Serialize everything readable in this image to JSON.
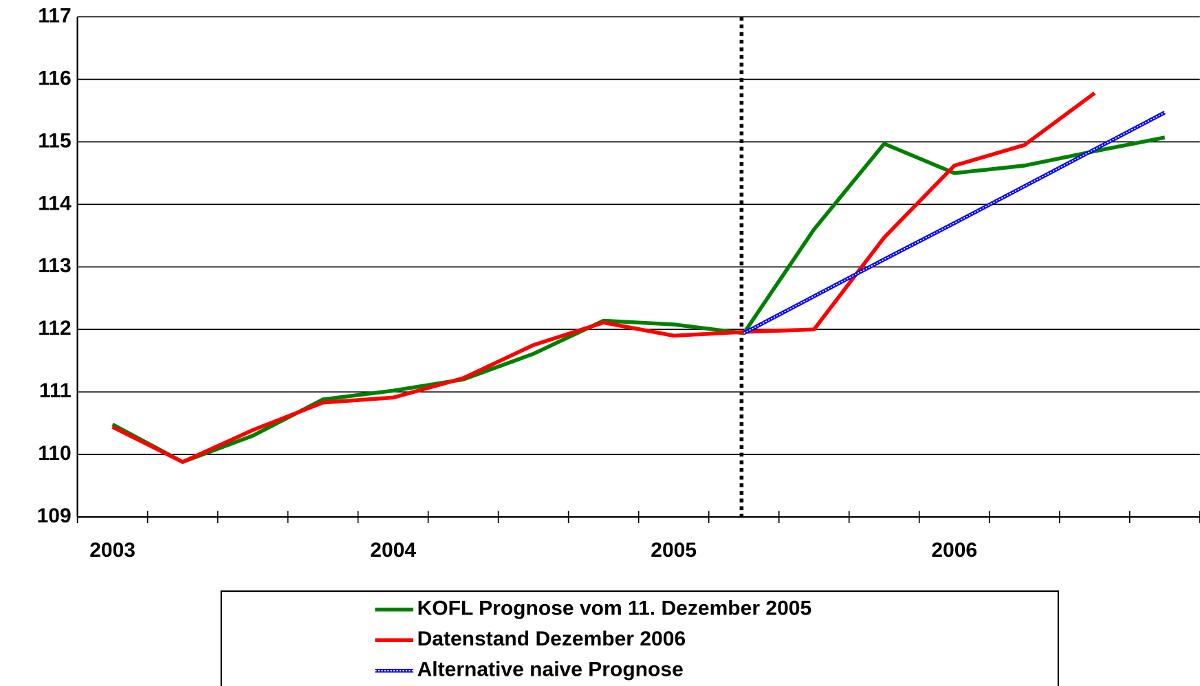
{
  "chart_data": {
    "type": "line",
    "categories": [
      "2003",
      null,
      null,
      null,
      "2004",
      null,
      null,
      null,
      "2005",
      null,
      null,
      null,
      "2006",
      null,
      null,
      null
    ],
    "series": [
      {
        "name": "KOFL Prognose vom 11. Dezember 2005",
        "color": "#008000",
        "values": [
          110.48,
          109.88,
          110.3,
          110.88,
          111.02,
          111.2,
          111.61,
          112.14,
          112.08,
          111.94,
          113.6,
          114.97,
          114.5,
          114.62,
          114.85,
          115.07
        ]
      },
      {
        "name": "Datenstand Dezember 2006",
        "color": "#ff0000",
        "values": [
          110.44,
          109.88,
          110.39,
          110.83,
          110.91,
          111.22,
          111.75,
          112.11,
          111.9,
          111.96,
          112.0,
          113.47,
          114.62,
          114.95,
          115.78,
          null
        ]
      },
      {
        "name": "Alternative naive Prognose",
        "color": "#0000ff",
        "values": [
          null,
          null,
          null,
          null,
          null,
          null,
          null,
          null,
          null,
          111.94,
          112.53,
          113.12,
          113.7,
          114.29,
          114.88,
          115.47
        ]
      }
    ],
    "ylim": [
      109,
      117
    ],
    "yticks": [
      109,
      110,
      111,
      112,
      113,
      114,
      115,
      116,
      117
    ],
    "grid": true
  }
}
